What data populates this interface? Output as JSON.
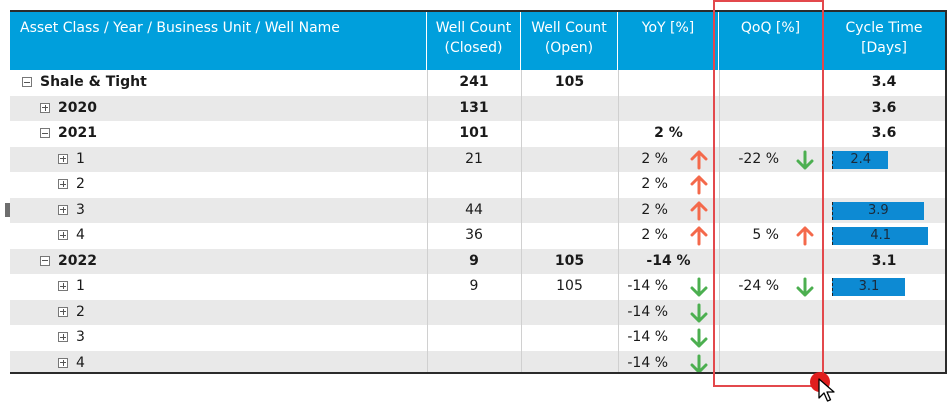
{
  "header": {
    "columns": [
      "Asset Class / Year / Business Unit / Well Name",
      "Well Count\n(Closed)",
      "Well Count\n(Open)",
      "YoY [%]",
      "QoQ [%]",
      "Cycle Time\n[Days]"
    ]
  },
  "rows": [
    {
      "name": "Shale & Tight",
      "closed": "241",
      "open": "105",
      "yoy": "",
      "yoy_trend": "",
      "qoq": "",
      "qoq_trend": "",
      "cycle": "3.4",
      "cycle_bar": null
    },
    {
      "name": "2020",
      "closed": "131",
      "open": "",
      "yoy": "",
      "yoy_trend": "",
      "qoq": "",
      "qoq_trend": "",
      "cycle": "3.6",
      "cycle_bar": null
    },
    {
      "name": "2021",
      "closed": "101",
      "open": "",
      "yoy": "2 %",
      "yoy_trend": "",
      "qoq": "",
      "qoq_trend": "",
      "cycle": "3.6",
      "cycle_bar": null
    },
    {
      "name": "1",
      "closed": "21",
      "open": "",
      "yoy": "2 %",
      "yoy_trend": "up",
      "qoq": "-22 %",
      "qoq_trend": "down",
      "cycle": "2.4",
      "cycle_bar": 2.4
    },
    {
      "name": "2",
      "closed": "",
      "open": "",
      "yoy": "2 %",
      "yoy_trend": "up",
      "qoq": "",
      "qoq_trend": "",
      "cycle": "",
      "cycle_bar": null
    },
    {
      "name": "3",
      "closed": "44",
      "open": "",
      "yoy": "2 %",
      "yoy_trend": "up",
      "qoq": "",
      "qoq_trend": "",
      "cycle": "3.9",
      "cycle_bar": 3.9
    },
    {
      "name": "4",
      "closed": "36",
      "open": "",
      "yoy": "2 %",
      "yoy_trend": "up",
      "qoq": "5 %",
      "qoq_trend": "up",
      "cycle": "4.1",
      "cycle_bar": 4.1
    },
    {
      "name": "2022",
      "closed": "9",
      "open": "105",
      "yoy": "-14 %",
      "yoy_trend": "",
      "qoq": "",
      "qoq_trend": "",
      "cycle": "3.1",
      "cycle_bar": null
    },
    {
      "name": "1",
      "closed": "9",
      "open": "105",
      "yoy": "-14 %",
      "yoy_trend": "down",
      "qoq": "-24 %",
      "qoq_trend": "down",
      "cycle": "3.1",
      "cycle_bar": 3.1
    },
    {
      "name": "2",
      "closed": "",
      "open": "",
      "yoy": "-14 %",
      "yoy_trend": "down",
      "qoq": "",
      "qoq_trend": "",
      "cycle": "",
      "cycle_bar": null
    },
    {
      "name": "3",
      "closed": "",
      "open": "",
      "yoy": "-14 %",
      "yoy_trend": "down",
      "qoq": "",
      "qoq_trend": "",
      "cycle": "",
      "cycle_bar": null
    },
    {
      "name": "4",
      "closed": "",
      "open": "",
      "yoy": "-14 %",
      "yoy_trend": "down",
      "qoq": "",
      "qoq_trend": "",
      "cycle": "",
      "cycle_bar": null
    }
  ],
  "colors": {
    "header_bg": "#009fdc",
    "row_shade": "#e9e9e9",
    "up_arrow": "#f4694b",
    "down_arrow": "#4caf50",
    "bar": "#0d8ad3",
    "highlight": "#e3484c"
  },
  "icons": {
    "expander": "plus-box-icon",
    "collapser": "minus-box-icon",
    "up": "arrow-up-icon",
    "down": "arrow-down-icon",
    "cursor": "mouse-pointer-icon"
  }
}
